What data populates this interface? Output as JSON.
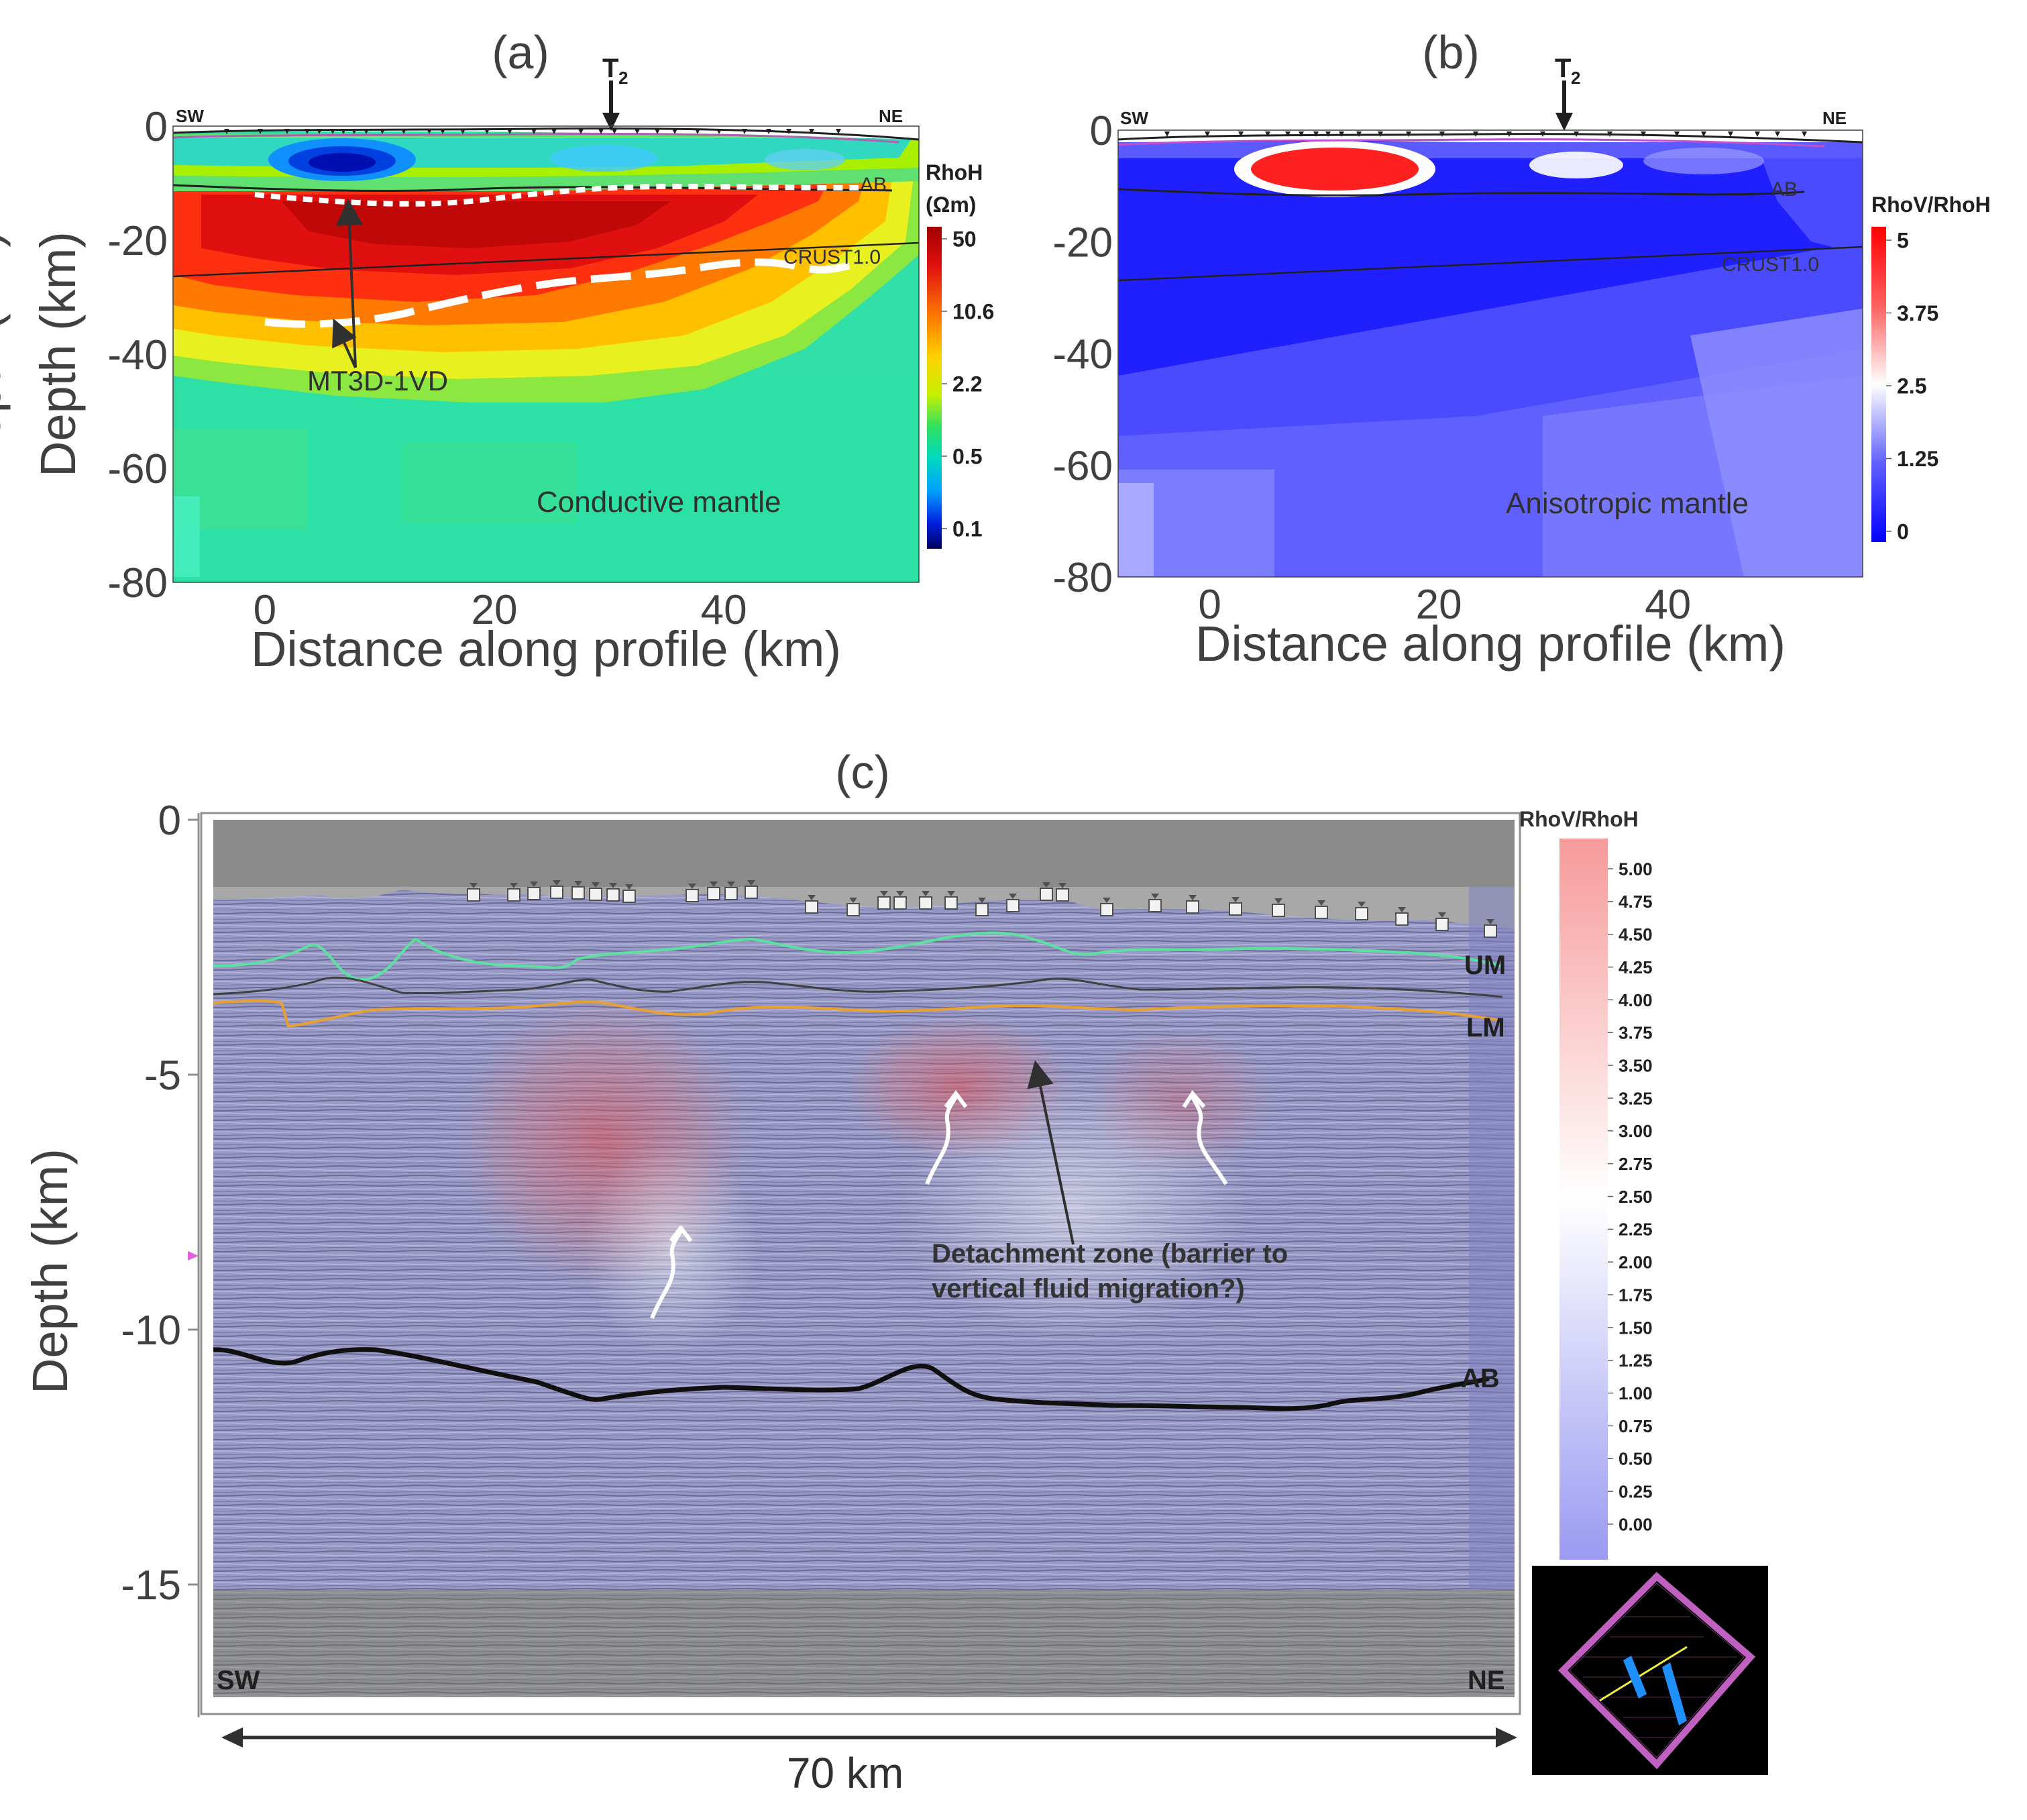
{
  "panel_a": {
    "label": "(a)",
    "station_marker": "T",
    "station_marker_sub": "2",
    "dir_left": "SW",
    "dir_right": "NE",
    "annotations": {
      "ab": "AB",
      "crust": "CRUST1.0",
      "model": "MT3D-1VD",
      "mantle": "Conductive mantle"
    },
    "colorbar": {
      "title_line1": "RhoH",
      "title_line2": "(Ωm)",
      "ticks": [
        "50",
        "10.6",
        "2.2",
        "0.5",
        "0.1"
      ]
    }
  },
  "panel_b": {
    "label": "(b)",
    "station_marker": "T",
    "station_marker_sub": "2",
    "dir_left": "SW",
    "dir_right": "NE",
    "annotations": {
      "ab": "AB",
      "crust": "CRUST1.0",
      "mantle": "Anisotropic mantle"
    },
    "colorbar": {
      "title": "RhoV/RhoH",
      "ticks": [
        "5",
        "3.75",
        "2.5",
        "1.25",
        "0"
      ]
    }
  },
  "panel_c": {
    "label": "(c)",
    "dir_left": "SW",
    "dir_right": "NE",
    "horizons": {
      "um": "UM",
      "lm": "LM",
      "ab": "AB"
    },
    "detachment_line1": "Detachment zone (barrier to",
    "detachment_line2": "vertical fluid migration?)",
    "scale_label": "70 km",
    "colorbar": {
      "title": "RhoV/RhoH",
      "ticks": [
        "5.00",
        "4.75",
        "4.50",
        "4.25",
        "4.00",
        "3.75",
        "3.50",
        "3.25",
        "3.00",
        "2.75",
        "2.50",
        "2.25",
        "2.00",
        "1.75",
        "1.50",
        "1.25",
        "1.00",
        "0.75",
        "0.50",
        "0.25",
        "0.00"
      ]
    }
  },
  "chart_data": [
    {
      "type": "heatmap",
      "id": "a",
      "title": "(a)",
      "xlabel": "Distance along profile (km)",
      "ylabel": "Depth (km)",
      "xlim": [
        -8,
        57
      ],
      "ylim": [
        -80,
        0
      ],
      "x_ticks": [
        0,
        20,
        40
      ],
      "y_ticks": [
        0,
        -20,
        -40,
        -60,
        -80
      ],
      "y_tick_labels": [
        "0",
        "-20",
        "-40",
        "-60",
        "-80"
      ],
      "quantity": "RhoH (Ωm)",
      "colorbar_range": [
        0.1,
        50
      ]
    },
    {
      "type": "heatmap",
      "id": "b",
      "title": "(b)",
      "xlabel": "Distance along profile (km)",
      "ylabel": "Depth (km)",
      "xlim": [
        -8,
        57
      ],
      "ylim": [
        -80,
        0
      ],
      "x_ticks": [
        0,
        20,
        40
      ],
      "y_ticks": [
        0,
        -20,
        -40,
        -60,
        -80
      ],
      "y_tick_labels": [
        "0",
        "-20",
        "-40",
        "-60",
        "-80"
      ],
      "quantity": "RhoV/RhoH",
      "colorbar_range": [
        0,
        5
      ]
    },
    {
      "type": "heatmap",
      "id": "c",
      "title": "(c)",
      "ylabel": "Depth (km)",
      "y_ticks": [
        0,
        -5,
        -10,
        -15
      ],
      "y_tick_labels": [
        "0",
        "-5",
        "-10",
        "-15"
      ],
      "ylim": [
        -18,
        0
      ],
      "profile_length": "70 km",
      "quantity": "RhoV/RhoH overlay on seismic section",
      "colorbar_range": [
        0,
        5
      ]
    }
  ]
}
